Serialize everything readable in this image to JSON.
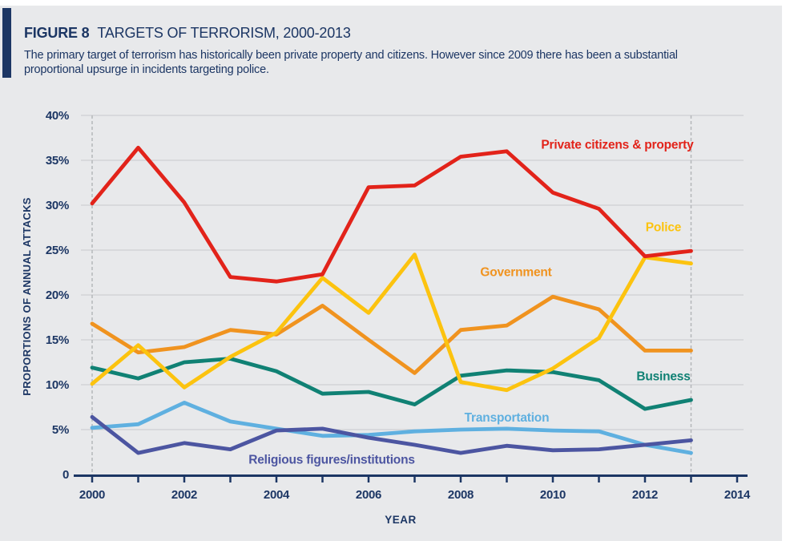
{
  "header": {
    "figure_label": "FIGURE 8",
    "title": "TARGETS OF TERRORISM, 2000-2013",
    "subtitle_line1": "The primary target of terrorism has historically been private property and citizens. However since 2009 there has been a substantial",
    "subtitle_line2": "proportional upsurge in incidents targeting police."
  },
  "colors": {
    "navy_text": "#1c3664",
    "panel_background": "#e8e9eb",
    "gridline": "#c7c9cc",
    "dashed_line": "#b4b7ba"
  },
  "chart_data": {
    "type": "line",
    "title": "TARGETS OF TERRORISM, 2000-2013",
    "x": [
      2000,
      2001,
      2002,
      2003,
      2004,
      2005,
      2006,
      2007,
      2008,
      2009,
      2010,
      2011,
      2012,
      2013
    ],
    "xlabel": "YEAR",
    "ylabel": "PROPORTIONS OF ANNUAL ATTACKS",
    "xlim": [
      2000,
      2014
    ],
    "ylim": [
      0,
      40
    ],
    "x_tick_step": 1,
    "x_label_step": 2,
    "y_tick_step": 5,
    "y_tick_suffix": "%",
    "y_zero_label": "0",
    "grid": "horizontal",
    "legend_position": "inline-labels",
    "dashed_vlines": [
      2000,
      2013
    ],
    "series": [
      {
        "name": "Transportation",
        "color": "#5fb0e0",
        "values": [
          5.2,
          5.6,
          8.0,
          5.9,
          5.1,
          4.3,
          4.4,
          4.8,
          5.0,
          5.1,
          4.9,
          4.8,
          3.3,
          2.4
        ],
        "label": {
          "year": 2009.0,
          "value": 5.9
        }
      },
      {
        "name": "Religious figures/institutions",
        "color": "#4c55a1",
        "values": [
          6.4,
          2.4,
          3.5,
          2.8,
          4.9,
          5.1,
          4.1,
          3.3,
          2.4,
          3.2,
          2.7,
          2.8,
          3.3,
          3.8
        ],
        "label": {
          "year": 2005.2,
          "value": 1.2
        }
      },
      {
        "name": "Business",
        "color": "#108174",
        "values": [
          11.9,
          10.7,
          12.5,
          12.9,
          11.5,
          9.0,
          9.2,
          7.8,
          11.0,
          11.6,
          11.4,
          10.5,
          7.3,
          8.3
        ],
        "label": {
          "year": 2012.4,
          "value": 10.5
        }
      },
      {
        "name": "Government",
        "color": "#f0931f",
        "values": [
          16.8,
          13.6,
          14.2,
          16.1,
          15.6,
          18.8,
          15.0,
          11.3,
          16.1,
          16.6,
          19.8,
          18.4,
          13.8,
          13.8
        ],
        "label": {
          "year": 2009.2,
          "value": 22.1
        }
      },
      {
        "name": "Police",
        "color": "#fcc30f",
        "values": [
          10.1,
          14.4,
          9.7,
          13.1,
          15.8,
          21.9,
          18.0,
          24.5,
          10.3,
          9.4,
          11.8,
          15.2,
          24.2,
          23.5
        ],
        "label": {
          "year": 2012.4,
          "value": 27.1
        }
      },
      {
        "name": "Private citizens & property",
        "color": "#e2231a",
        "values": [
          30.2,
          36.4,
          30.3,
          22.0,
          21.5,
          22.3,
          32.0,
          32.2,
          35.4,
          36.0,
          31.4,
          29.6,
          24.3,
          24.9
        ],
        "label": {
          "year": 2011.4,
          "value": 36.3
        }
      }
    ]
  }
}
